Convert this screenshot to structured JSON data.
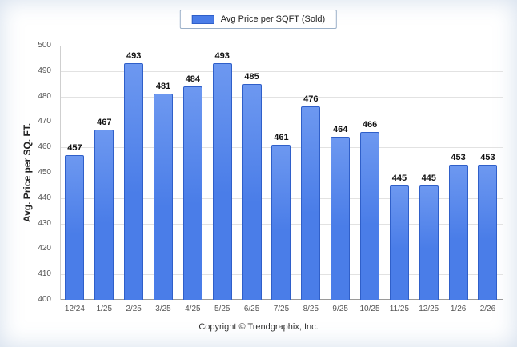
{
  "legend": {
    "label": "Avg Price per SQFT (Sold)",
    "swatch_color": "#4a7de8"
  },
  "footer": {
    "text": "Copyright © Trendgraphix, Inc."
  },
  "chart_data": {
    "type": "bar",
    "title": "",
    "categories": [
      "12/24",
      "1/25",
      "2/25",
      "3/25",
      "4/25",
      "5/25",
      "6/25",
      "7/25",
      "8/25",
      "9/25",
      "10/25",
      "11/25",
      "12/25",
      "1/26",
      "2/26"
    ],
    "values": [
      457,
      467,
      493,
      481,
      484,
      493,
      485,
      461,
      476,
      464,
      466,
      445,
      445,
      453,
      453
    ],
    "xlabel": "",
    "ylabel": "Avg. Price per SQ. FT.",
    "ylim": [
      400,
      500
    ],
    "ytick_step": 10,
    "grid": true,
    "legend_position": "top",
    "bar_color": "#4a7de8"
  }
}
